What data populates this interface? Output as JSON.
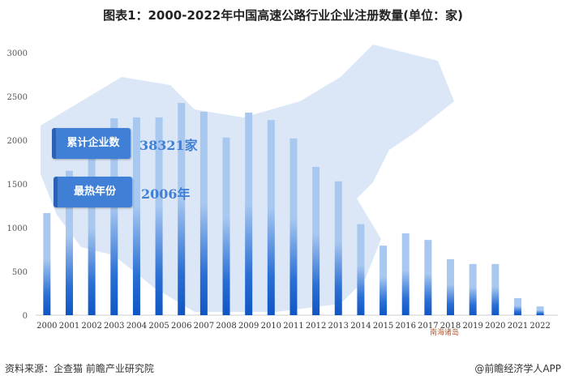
{
  "title": "图表1：2000-2022年中国高速公路行业企业注册数量(单位：家)",
  "badges": [
    {
      "label": "累计企业数",
      "value": "38321家"
    },
    {
      "label": "最热年份",
      "value": "2006年"
    }
  ],
  "map_label": "南海诸岛",
  "source": "资料来源：企查猫 前瞻产业研究院",
  "brand": "@前瞻经济学人APP",
  "colors": {
    "bar_top": "#a9c8f0",
    "bar_bottom": "#0f56c4",
    "map": "#dbe7f6"
  },
  "chart_data": {
    "type": "bar",
    "title": "图表1：2000-2022年中国高速公路行业企业注册数量(单位：家)",
    "categories": [
      "2000",
      "2001",
      "2002",
      "2003",
      "2004",
      "2005",
      "2006",
      "2007",
      "2008",
      "2009",
      "2010",
      "2011",
      "2012",
      "2013",
      "2014",
      "2015",
      "2016",
      "2017",
      "2018",
      "2019",
      "2020",
      "2021",
      "2022"
    ],
    "values": [
      1167,
      1650,
      1815,
      2250,
      2260,
      2260,
      2425,
      2325,
      2030,
      2315,
      2230,
      2020,
      1695,
      1530,
      1040,
      795,
      935,
      860,
      640,
      585,
      585,
      195,
      100
    ],
    "ylim": [
      0,
      3000
    ],
    "yticks": [
      "0",
      "500",
      "1000",
      "1500",
      "2000",
      "2500",
      "3000"
    ],
    "xlabel": "",
    "ylabel": "",
    "grid": false
  }
}
